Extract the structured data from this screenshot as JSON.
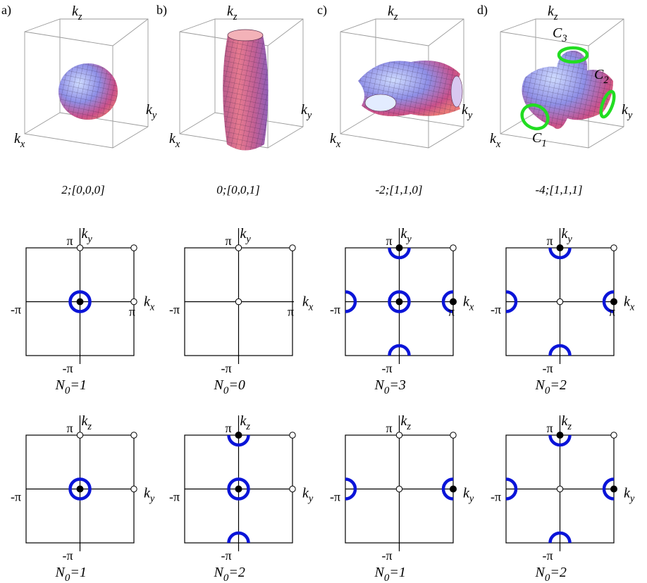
{
  "figure": {
    "panels": [
      {
        "letter": "a)",
        "shape": "blob",
        "caption": "2;[0,0,0]",
        "axes": {
          "kz": "k",
          "kz_sub": "z",
          "ky": "k",
          "ky_sub": "y",
          "kx": "k",
          "kx_sub": "x"
        }
      },
      {
        "letter": "b)",
        "shape": "cylinder",
        "caption": "0;[0,0,1]",
        "axes": {
          "kz": "k",
          "kz_sub": "z",
          "ky": "k",
          "ky_sub": "y",
          "kx": "k",
          "kx_sub": "x"
        }
      },
      {
        "letter": "c)",
        "shape": "cross",
        "caption": "-2;[1,1,0]",
        "axes": {
          "kz": "k",
          "kz_sub": "z",
          "ky": "k",
          "ky_sub": "y",
          "kx": "k",
          "kx_sub": "x"
        }
      },
      {
        "letter": "d)",
        "shape": "octo",
        "caption": "-4;[1,1,1]",
        "axes": {
          "kz": "k",
          "kz_sub": "z",
          "ky": "k",
          "ky_sub": "y",
          "kx": "k",
          "kx_sub": "x"
        },
        "cuts": [
          {
            "label": "C",
            "sub": "1"
          },
          {
            "label": "C",
            "sub": "2"
          },
          {
            "label": "C",
            "sub": "3"
          }
        ]
      }
    ],
    "grids": [
      {
        "row": "kx-ky",
        "cells": [
          {
            "top_axis": "k",
            "top_sub": "y",
            "right_axis": "k",
            "right_sub": "x",
            "pi_top": "π",
            "pi_right": "π",
            "minus_pi_left": "-π",
            "minus_pi_bottom": "-π",
            "caption_N": "N",
            "caption_sub": "0",
            "caption_val": "=1",
            "filled": [
              "center"
            ],
            "hollow": [
              "top",
              "corner",
              "right"
            ],
            "circle_center": true,
            "arcs": []
          },
          {
            "top_axis": "k",
            "top_sub": "y",
            "right_axis": "k",
            "right_sub": "x",
            "pi_top": "π",
            "pi_right": "π",
            "minus_pi_left": "-π",
            "minus_pi_bottom": "-π",
            "caption_N": "N",
            "caption_sub": "0",
            "caption_val": "=0",
            "filled": [],
            "hollow": [
              "center",
              "top",
              "corner"
            ],
            "circle_center": false,
            "arcs": []
          },
          {
            "top_axis": "k",
            "top_sub": "y",
            "right_axis": "k",
            "right_sub": "x",
            "pi_top": "π",
            "pi_right": "π",
            "minus_pi_left": "-π",
            "minus_pi_bottom": "-π",
            "caption_N": "N",
            "caption_sub": "0",
            "caption_val": "=3",
            "filled": [
              "center",
              "top",
              "right"
            ],
            "hollow": [
              "corner"
            ],
            "circle_center": true,
            "arcs": [
              "top",
              "bottom",
              "left",
              "right"
            ]
          },
          {
            "top_axis": "k",
            "top_sub": "y",
            "right_axis": "k",
            "right_sub": "x",
            "pi_top": "π",
            "pi_right": "π",
            "minus_pi_left": "-π",
            "minus_pi_bottom": "-π",
            "caption_N": "N",
            "caption_sub": "0",
            "caption_val": "=2",
            "filled": [
              "top",
              "right"
            ],
            "hollow": [
              "center",
              "corner"
            ],
            "circle_center": false,
            "arcs": [
              "top",
              "bottom",
              "left",
              "right"
            ]
          }
        ]
      },
      {
        "row": "ky-kz",
        "cells": [
          {
            "top_axis": "k",
            "top_sub": "z",
            "right_axis": "k",
            "right_sub": "y",
            "pi_top": "π",
            "pi_right": "",
            "minus_pi_left": "-π",
            "minus_pi_bottom": "-π",
            "caption_N": "N",
            "caption_sub": "0",
            "caption_val": "=1",
            "filled": [
              "center"
            ],
            "hollow": [
              "top",
              "corner",
              "right"
            ],
            "circle_center": true,
            "arcs": []
          },
          {
            "top_axis": "k",
            "top_sub": "z",
            "right_axis": "k",
            "right_sub": "y",
            "pi_top": "π",
            "pi_right": "",
            "minus_pi_left": "-π",
            "minus_pi_bottom": "-π",
            "caption_N": "N",
            "caption_sub": "0",
            "caption_val": "=2",
            "filled": [
              "center",
              "top"
            ],
            "hollow": [
              "corner",
              "right"
            ],
            "circle_center": true,
            "arcs": [
              "top",
              "bottom"
            ]
          },
          {
            "top_axis": "k",
            "top_sub": "z",
            "right_axis": "k",
            "right_sub": "y",
            "pi_top": "π",
            "pi_right": "",
            "minus_pi_left": "-π",
            "minus_pi_bottom": "-π",
            "caption_N": "N",
            "caption_sub": "0",
            "caption_val": "=1",
            "filled": [
              "right"
            ],
            "hollow": [
              "center",
              "top",
              "corner"
            ],
            "circle_center": false,
            "arcs": [
              "left",
              "right"
            ]
          },
          {
            "top_axis": "k",
            "top_sub": "z",
            "right_axis": "k",
            "right_sub": "y",
            "pi_top": "π",
            "pi_right": "",
            "minus_pi_left": "-π",
            "minus_pi_bottom": "-π",
            "caption_N": "N",
            "caption_sub": "0",
            "caption_val": "=2",
            "filled": [
              "top",
              "right"
            ],
            "hollow": [
              "center",
              "corner"
            ],
            "circle_center": false,
            "arcs": [
              "top",
              "bottom",
              "left",
              "right"
            ]
          }
        ]
      }
    ],
    "colors": {
      "node_arc": "#0a14d8",
      "cut_ring": "#22dd22",
      "surface_light": "#9fb8f2",
      "surface_dark": "#d0527a"
    }
  }
}
